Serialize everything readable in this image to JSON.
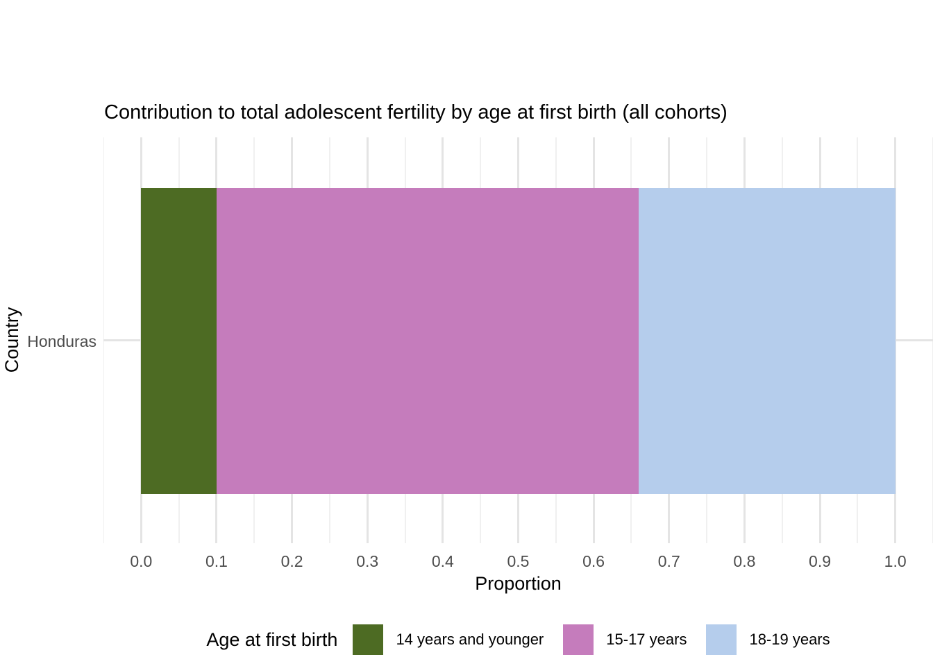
{
  "chart_data": {
    "type": "bar",
    "orientation": "horizontal",
    "stacked": true,
    "title": "Contribution to total adolescent fertility by age at first birth (all cohorts)",
    "xlabel": "Proportion",
    "ylabel": "Country",
    "categories": [
      "Honduras"
    ],
    "series": [
      {
        "name": "14 years and younger",
        "values": [
          0.1
        ],
        "color": "#4d6b23"
      },
      {
        "name": "15-17 years",
        "values": [
          0.56
        ],
        "color": "#c57cbc"
      },
      {
        "name": "18-19 years",
        "values": [
          0.34
        ],
        "color": "#b5cdec"
      }
    ],
    "xlim": [
      0,
      1
    ],
    "x_ticks": [
      0.0,
      0.1,
      0.2,
      0.3,
      0.4,
      0.5,
      0.6,
      0.7,
      0.8,
      0.9,
      1.0
    ],
    "x_tick_labels": [
      "0.0",
      "0.1",
      "0.2",
      "0.3",
      "0.4",
      "0.5",
      "0.6",
      "0.7",
      "0.8",
      "0.9",
      "1.0"
    ],
    "grid": true,
    "legend_title": "Age at first birth",
    "legend_position": "bottom"
  },
  "colors": {
    "background": "#ffffff",
    "grid_major": "#e4e4e4",
    "grid_minor": "#f0f0f0",
    "axis_text": "#4d4d4d",
    "title_text": "#000000"
  }
}
